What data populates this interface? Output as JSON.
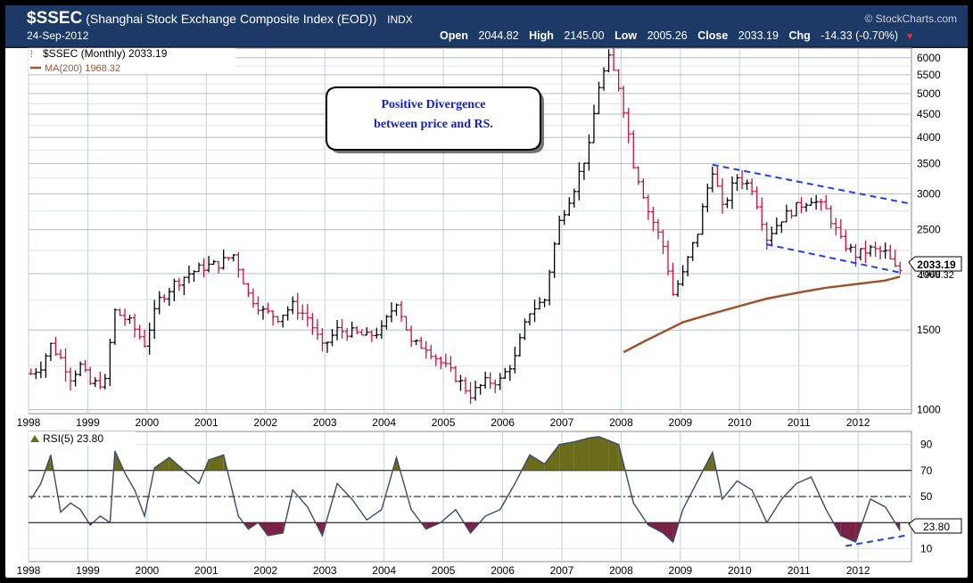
{
  "header": {
    "symbol": "$SSEC",
    "name": "(Shanghai Stock Exchange Composite Index (EOD))",
    "exchange": "INDX",
    "date": "24-Sep-2012",
    "brand": "© StockCharts.com",
    "open_label": "Open",
    "open": "2044.82",
    "high_label": "High",
    "high": "2145.00",
    "low_label": "Low",
    "low": "2005.26",
    "close_label": "Close",
    "close": "2033.19",
    "chg_label": "Chg",
    "chg": "-14.33 (-0.70%)",
    "down_arrow": "▼"
  },
  "legend": {
    "price": "$SSEC (Monthly) 2033.19",
    "ma": "MA(200) 1968.32",
    "rsi": "RSI(5) 23.80"
  },
  "callout": {
    "line1": "Positive Divergence",
    "line2": "between price and RS."
  },
  "price_tag": "2033.19",
  "ma_tag": "1968.32",
  "rsi_tag": "23.80",
  "colors": {
    "header_bg": "#1d3a66",
    "up_bar": "#000000",
    "down_bar": "#d0103a",
    "ma_line": "#a0522d",
    "trend_line": "#1f3cff",
    "rsi_over": "#6b6b1c",
    "rsi_under": "#7a2145",
    "rsi_line": "#3d4a66",
    "callout_text": "#1520cc"
  },
  "chart_data": [
    {
      "type": "ohlc",
      "title": "$SSEC (Monthly) 2033.19",
      "scale": "log",
      "ylim": [
        980,
        6300
      ],
      "y_ticks": [
        1000,
        1500,
        2000,
        2500,
        3000,
        3500,
        4000,
        4500,
        5000,
        5500,
        6000
      ],
      "x_ticks": [
        "1998",
        "1999",
        "2000",
        "2001",
        "2002",
        "2003",
        "2004",
        "2005",
        "2006",
        "2007",
        "2008",
        "2009",
        "2010",
        "2011",
        "2012"
      ],
      "approx_monthly_close": [
        {
          "x": "1998-01",
          "y": 1200
        },
        {
          "x": "1998-03",
          "y": 1250
        },
        {
          "x": "1998-05",
          "y": 1390
        },
        {
          "x": "1998-07",
          "y": 1300
        },
        {
          "x": "1998-09",
          "y": 1180
        },
        {
          "x": "1998-11",
          "y": 1250
        },
        {
          "x": "1999-01",
          "y": 1140
        },
        {
          "x": "1999-04",
          "y": 1150
        },
        {
          "x": "1999-06",
          "y": 1650
        },
        {
          "x": "1999-09",
          "y": 1560
        },
        {
          "x": "1999-12",
          "y": 1400
        },
        {
          "x": "2000-03",
          "y": 1750
        },
        {
          "x": "2000-06",
          "y": 1900
        },
        {
          "x": "2000-09",
          "y": 2000
        },
        {
          "x": "2000-12",
          "y": 2070
        },
        {
          "x": "2001-03",
          "y": 2100
        },
        {
          "x": "2001-06",
          "y": 2200
        },
        {
          "x": "2001-09",
          "y": 1800
        },
        {
          "x": "2001-12",
          "y": 1650
        },
        {
          "x": "2002-03",
          "y": 1600
        },
        {
          "x": "2002-06",
          "y": 1700
        },
        {
          "x": "2002-09",
          "y": 1600
        },
        {
          "x": "2002-12",
          "y": 1370
        },
        {
          "x": "2003-03",
          "y": 1500
        },
        {
          "x": "2003-06",
          "y": 1480
        },
        {
          "x": "2003-09",
          "y": 1450
        },
        {
          "x": "2003-12",
          "y": 1500
        },
        {
          "x": "2004-03",
          "y": 1740
        },
        {
          "x": "2004-06",
          "y": 1400
        },
        {
          "x": "2004-09",
          "y": 1380
        },
        {
          "x": "2004-12",
          "y": 1270
        },
        {
          "x": "2005-03",
          "y": 1180
        },
        {
          "x": "2005-06",
          "y": 1080
        },
        {
          "x": "2005-09",
          "y": 1150
        },
        {
          "x": "2005-12",
          "y": 1160
        },
        {
          "x": "2006-03",
          "y": 1300
        },
        {
          "x": "2006-06",
          "y": 1650
        },
        {
          "x": "2006-09",
          "y": 1750
        },
        {
          "x": "2006-12",
          "y": 2600
        },
        {
          "x": "2007-03",
          "y": 3100
        },
        {
          "x": "2007-06",
          "y": 3800
        },
        {
          "x": "2007-08",
          "y": 5200
        },
        {
          "x": "2007-10",
          "y": 5950
        },
        {
          "x": "2007-12",
          "y": 5200
        },
        {
          "x": "2008-03",
          "y": 3500
        },
        {
          "x": "2008-06",
          "y": 2750
        },
        {
          "x": "2008-09",
          "y": 2300
        },
        {
          "x": "2008-11",
          "y": 1800
        },
        {
          "x": "2009-01",
          "y": 1990
        },
        {
          "x": "2009-04",
          "y": 2470
        },
        {
          "x": "2009-07",
          "y": 3400
        },
        {
          "x": "2009-09",
          "y": 2780
        },
        {
          "x": "2009-12",
          "y": 3270
        },
        {
          "x": "2010-03",
          "y": 3100
        },
        {
          "x": "2010-06",
          "y": 2400
        },
        {
          "x": "2010-09",
          "y": 2650
        },
        {
          "x": "2010-12",
          "y": 2800
        },
        {
          "x": "2011-03",
          "y": 2930
        },
        {
          "x": "2011-06",
          "y": 2760
        },
        {
          "x": "2011-09",
          "y": 2360
        },
        {
          "x": "2011-12",
          "y": 2200
        },
        {
          "x": "2012-03",
          "y": 2260
        },
        {
          "x": "2012-06",
          "y": 2220
        },
        {
          "x": "2012-08",
          "y": 2050
        },
        {
          "x": "2012-09",
          "y": 2033.19
        }
      ],
      "ma200": {
        "name": "MA(200) 1968.32",
        "start": "2008-01",
        "start_value": 1340,
        "end_value": 1968.32,
        "points": [
          {
            "x": "2008-01",
            "y": 1340
          },
          {
            "x": "2008-06",
            "y": 1430
          },
          {
            "x": "2009-01",
            "y": 1560
          },
          {
            "x": "2009-06",
            "y": 1620
          },
          {
            "x": "2010-01",
            "y": 1700
          },
          {
            "x": "2010-06",
            "y": 1760
          },
          {
            "x": "2011-01",
            "y": 1820
          },
          {
            "x": "2011-06",
            "y": 1860
          },
          {
            "x": "2012-01",
            "y": 1900
          },
          {
            "x": "2012-06",
            "y": 1930
          },
          {
            "x": "2012-09",
            "y": 1968.32
          }
        ]
      },
      "trendlines": [
        {
          "from": {
            "x": "2009-07",
            "y": 3480
          },
          "to": {
            "x": "2012-12",
            "y": 2850
          }
        },
        {
          "from": {
            "x": "2010-06",
            "y": 2320
          },
          "to": {
            "x": "2012-09",
            "y": 2010
          }
        }
      ]
    },
    {
      "type": "line",
      "title": "RSI(5) 23.80",
      "ylim": [
        0,
        100
      ],
      "y_ticks": [
        10,
        30,
        50,
        70,
        90
      ],
      "x_ticks": [
        "1998",
        "1999",
        "2000",
        "2001",
        "2002",
        "2003",
        "2004",
        "2005",
        "2006",
        "2007",
        "2008",
        "2009",
        "2010",
        "2011",
        "2012"
      ],
      "levels": [
        70,
        50,
        30
      ],
      "rsi": [
        {
          "x": "1998-01",
          "y": 48
        },
        {
          "x": "1998-03",
          "y": 60
        },
        {
          "x": "1998-05",
          "y": 82
        },
        {
          "x": "1998-07",
          "y": 38
        },
        {
          "x": "1998-09",
          "y": 45
        },
        {
          "x": "1998-11",
          "y": 40
        },
        {
          "x": "1999-01",
          "y": 28
        },
        {
          "x": "1999-03",
          "y": 35
        },
        {
          "x": "1999-05",
          "y": 30
        },
        {
          "x": "1999-06",
          "y": 85
        },
        {
          "x": "1999-08",
          "y": 68
        },
        {
          "x": "1999-10",
          "y": 55
        },
        {
          "x": "1999-12",
          "y": 35
        },
        {
          "x": "2000-02",
          "y": 72
        },
        {
          "x": "2000-05",
          "y": 80
        },
        {
          "x": "2000-08",
          "y": 70
        },
        {
          "x": "2000-11",
          "y": 60
        },
        {
          "x": "2001-01",
          "y": 78
        },
        {
          "x": "2001-04",
          "y": 82
        },
        {
          "x": "2001-07",
          "y": 35
        },
        {
          "x": "2001-09",
          "y": 25
        },
        {
          "x": "2001-11",
          "y": 30
        },
        {
          "x": "2002-01",
          "y": 20
        },
        {
          "x": "2002-04",
          "y": 22
        },
        {
          "x": "2002-06",
          "y": 55
        },
        {
          "x": "2002-09",
          "y": 42
        },
        {
          "x": "2002-12",
          "y": 20
        },
        {
          "x": "2003-03",
          "y": 60
        },
        {
          "x": "2003-06",
          "y": 48
        },
        {
          "x": "2003-09",
          "y": 32
        },
        {
          "x": "2003-12",
          "y": 40
        },
        {
          "x": "2004-03",
          "y": 80
        },
        {
          "x": "2004-06",
          "y": 40
        },
        {
          "x": "2004-09",
          "y": 25
        },
        {
          "x": "2004-12",
          "y": 30
        },
        {
          "x": "2005-03",
          "y": 40
        },
        {
          "x": "2005-06",
          "y": 22
        },
        {
          "x": "2005-09",
          "y": 35
        },
        {
          "x": "2005-12",
          "y": 40
        },
        {
          "x": "2006-03",
          "y": 60
        },
        {
          "x": "2006-06",
          "y": 82
        },
        {
          "x": "2006-09",
          "y": 75
        },
        {
          "x": "2006-12",
          "y": 90
        },
        {
          "x": "2007-03",
          "y": 92
        },
        {
          "x": "2007-06",
          "y": 95
        },
        {
          "x": "2007-08",
          "y": 96
        },
        {
          "x": "2007-10",
          "y": 93
        },
        {
          "x": "2007-12",
          "y": 90
        },
        {
          "x": "2008-03",
          "y": 45
        },
        {
          "x": "2008-06",
          "y": 28
        },
        {
          "x": "2008-09",
          "y": 22
        },
        {
          "x": "2008-11",
          "y": 15
        },
        {
          "x": "2009-01",
          "y": 40
        },
        {
          "x": "2009-04",
          "y": 62
        },
        {
          "x": "2009-07",
          "y": 84
        },
        {
          "x": "2009-09",
          "y": 48
        },
        {
          "x": "2009-12",
          "y": 62
        },
        {
          "x": "2010-03",
          "y": 55
        },
        {
          "x": "2010-06",
          "y": 30
        },
        {
          "x": "2010-09",
          "y": 48
        },
        {
          "x": "2010-12",
          "y": 60
        },
        {
          "x": "2011-03",
          "y": 65
        },
        {
          "x": "2011-06",
          "y": 40
        },
        {
          "x": "2011-09",
          "y": 20
        },
        {
          "x": "2011-12",
          "y": 15
        },
        {
          "x": "2012-03",
          "y": 48
        },
        {
          "x": "2012-06",
          "y": 42
        },
        {
          "x": "2012-08",
          "y": 30
        },
        {
          "x": "2012-09",
          "y": 23.8
        }
      ],
      "divergence_line": {
        "from": {
          "x": "2011-10",
          "y": 12
        },
        "to": {
          "x": "2012-10",
          "y": 20
        }
      }
    }
  ]
}
